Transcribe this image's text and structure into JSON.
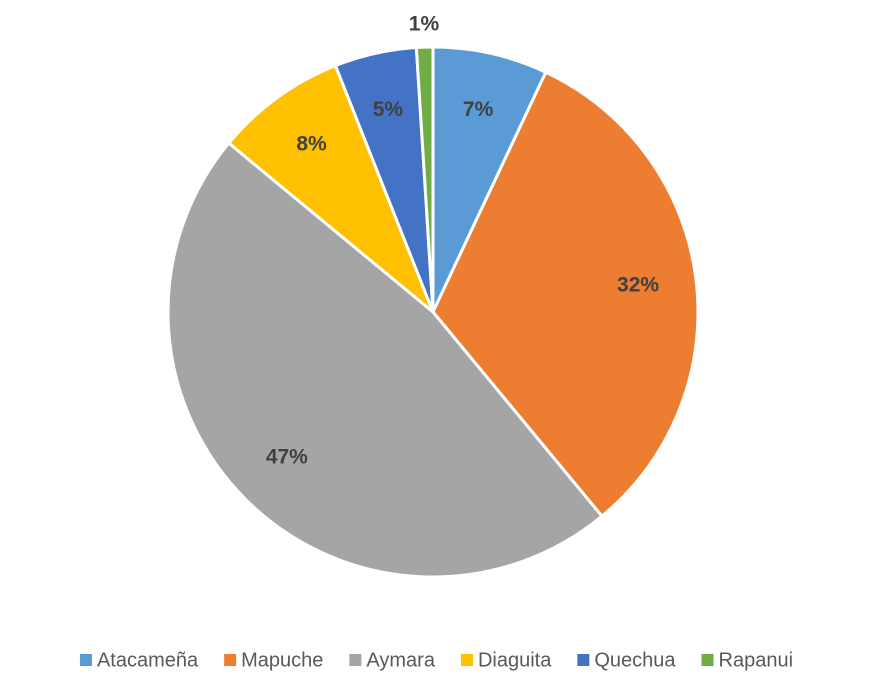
{
  "chart_data": {
    "type": "pie",
    "categories": [
      "Atacameña",
      "Mapuche",
      "Aymara",
      "Diaguita",
      "Quechua",
      "Rapanui"
    ],
    "values": [
      7,
      32,
      47,
      8,
      5,
      1
    ],
    "value_labels": [
      "7%",
      "32%",
      "47%",
      "8%",
      "5%",
      "1%"
    ],
    "colors": [
      "#5b9bd5",
      "#ed7d31",
      "#a5a5a5",
      "#ffc000",
      "#4472c4",
      "#70ad47"
    ],
    "legend": "bottom"
  }
}
